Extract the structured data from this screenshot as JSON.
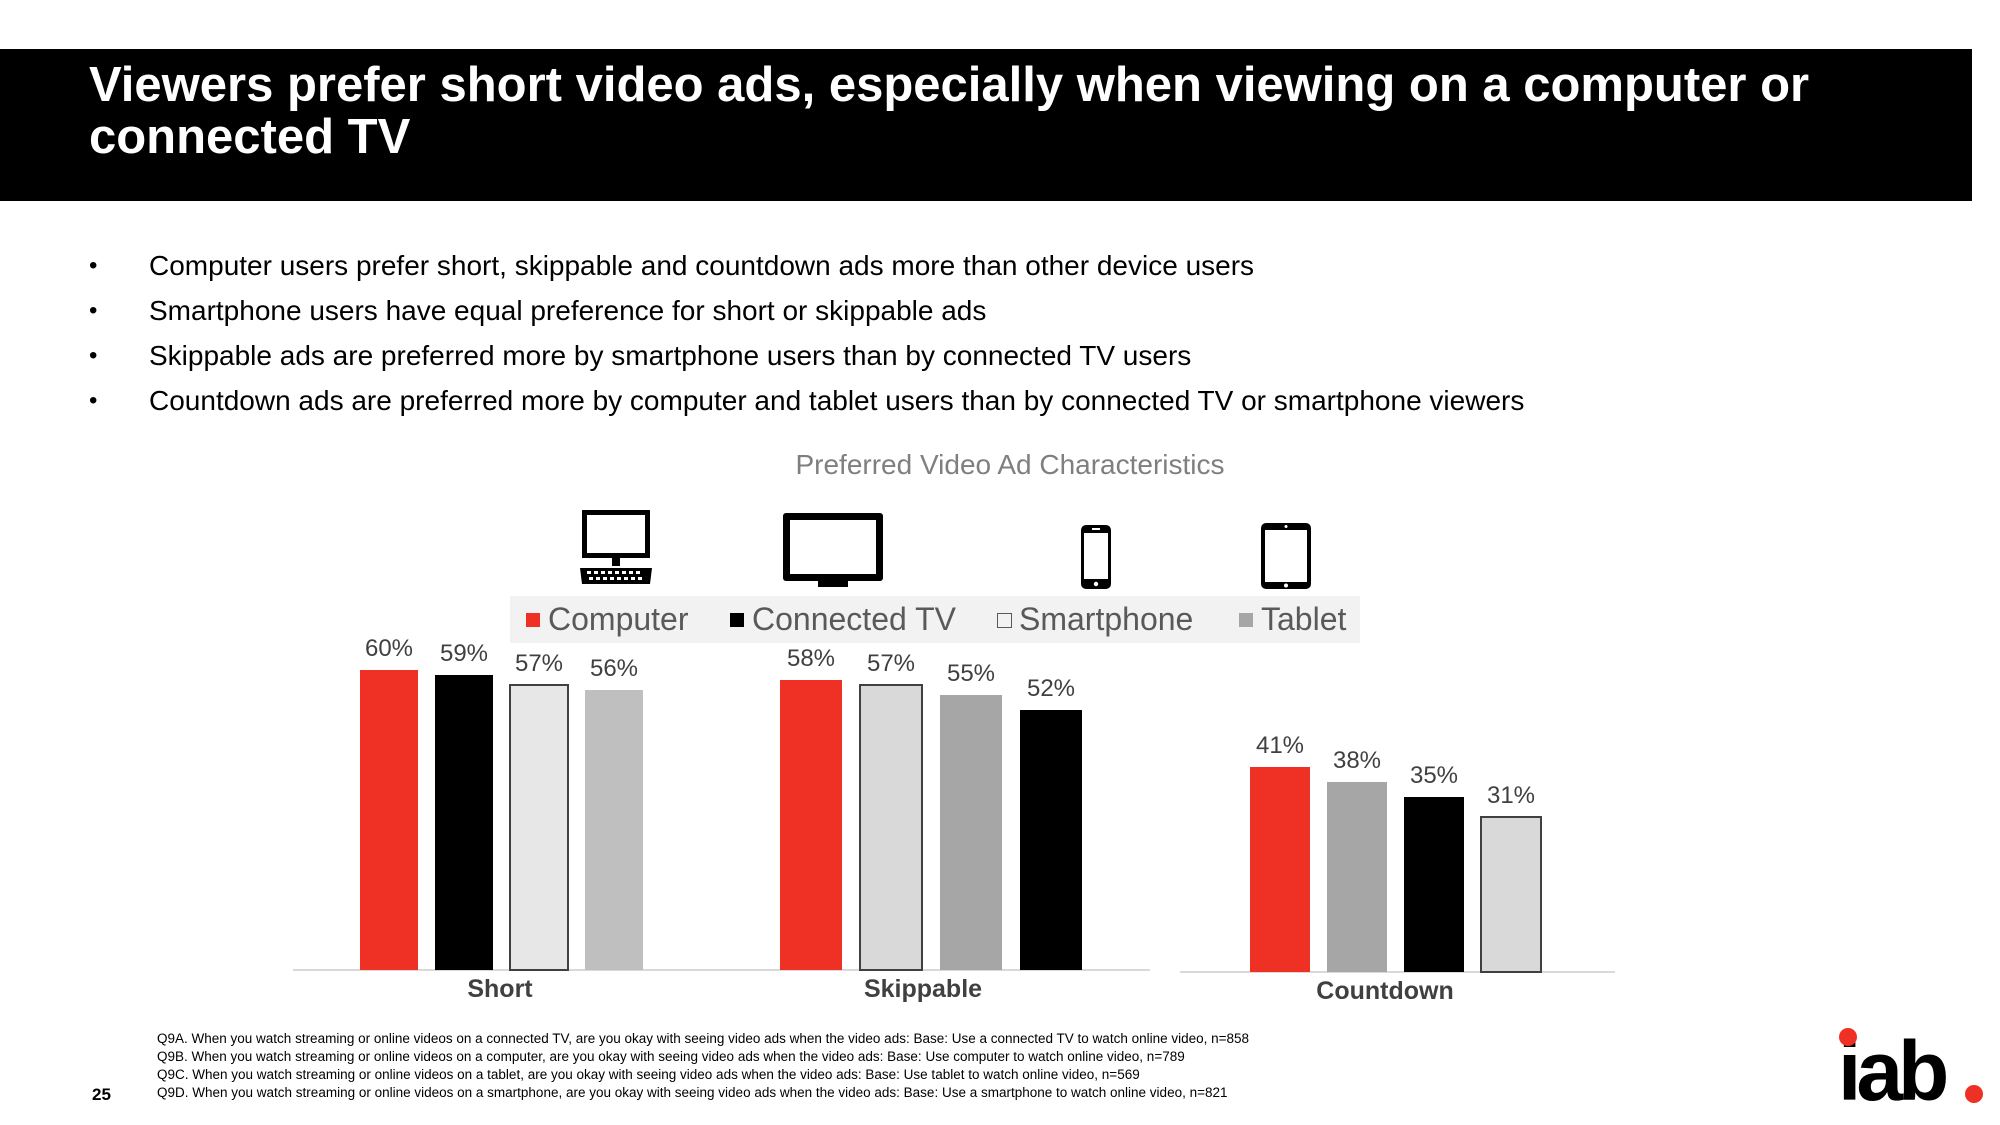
{
  "header": {
    "title": "Viewers prefer short video ads, especially when viewing on a computer or connected TV"
  },
  "bullets": [
    "Computer users prefer short, skippable and countdown ads more than other device users",
    "Smartphone users have equal preference for short or skippable ads",
    "Skippable ads are preferred more by smartphone users than by connected TV users",
    "Countdown ads are preferred more by computer and tablet users than by connected TV or smartphone viewers"
  ],
  "bullet_symbol": "•",
  "device_icons": [
    "desktop-computer-icon",
    "tv-icon",
    "smartphone-icon",
    "tablet-icon"
  ],
  "legend": {
    "computer": {
      "label": "Computer",
      "color": "#ee3124"
    },
    "connected_tv": {
      "label": "Connected TV",
      "color": "#000000"
    },
    "smartphone": {
      "label": "Smartphone",
      "color": "#d9d9d9"
    },
    "tablet": {
      "label": "Tablet",
      "color": "#a6a6a6"
    }
  },
  "chart_data": {
    "type": "bar",
    "title": "Preferred Video Ad Characteristics",
    "categories": [
      "Short",
      "Skippable",
      "Countdown"
    ],
    "unit": "%",
    "ylim": [
      0,
      60
    ],
    "legend_position": "top",
    "grid": false,
    "groups": [
      {
        "category": "Short",
        "bars": [
          {
            "value": 60,
            "label": "60%",
            "color": "#ee3124",
            "outline": false
          },
          {
            "value": 59,
            "label": "59%",
            "color": "#000000",
            "outline": false
          },
          {
            "value": 57,
            "label": "57%",
            "color": "#e7e7e7",
            "outline": true
          },
          {
            "value": 56,
            "label": "56%",
            "color": "#bfbfbf",
            "outline": false
          }
        ]
      },
      {
        "category": "Skippable",
        "bars": [
          {
            "value": 58,
            "label": "58%",
            "color": "#ee3124",
            "outline": false
          },
          {
            "value": 57,
            "label": "57%",
            "color": "#d9d9d9",
            "outline": true
          },
          {
            "value": 55,
            "label": "55%",
            "color": "#a6a6a6",
            "outline": false
          },
          {
            "value": 52,
            "label": "52%",
            "color": "#000000",
            "outline": false
          }
        ]
      },
      {
        "category": "Countdown",
        "bars": [
          {
            "value": 41,
            "label": "41%",
            "color": "#ee3124",
            "outline": false
          },
          {
            "value": 38,
            "label": "38%",
            "color": "#a6a6a6",
            "outline": false
          },
          {
            "value": 35,
            "label": "35%",
            "color": "#000000",
            "outline": false
          },
          {
            "value": 31,
            "label": "31%",
            "color": "#d9d9d9",
            "outline": true
          }
        ]
      }
    ]
  },
  "footnotes": [
    "Q9A. When you watch streaming or online videos on a connected TV, are you okay with seeing video ads when the video ads: Base: Use a connected TV to watch online video, n=858",
    "Q9B. When you watch streaming or online videos on a computer, are you okay with seeing video ads when the video ads: Base: Use computer to watch online video, n=789",
    "Q9C. When you watch streaming or online videos on a tablet, are you okay with seeing video ads when the video ads: Base: Use tablet to watch online video, n=569",
    "Q9D. When you watch streaming or online videos on a smartphone, are you okay with seeing video ads when the video ads: Base: Use a smartphone to watch online video, n=821"
  ],
  "page_number": "25",
  "logo": {
    "text": "iab.",
    "dot_color": "#ee3124"
  }
}
